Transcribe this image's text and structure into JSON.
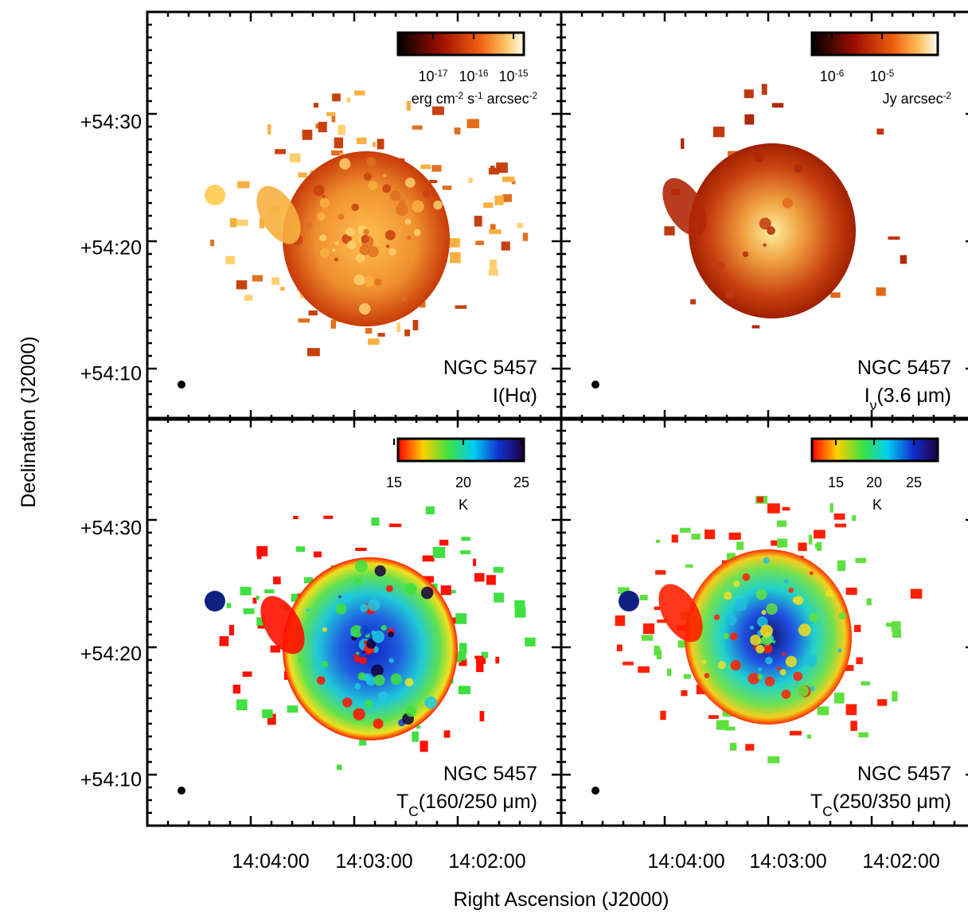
{
  "axes": {
    "x_label": "Right Ascension (J2000)",
    "y_label": "Declination (J2000)",
    "x_ticks": [
      "14:04:00",
      "14:03:00",
      "14:02:00"
    ],
    "y_ticks": [
      "+54:30",
      "+54:20",
      "+54:10"
    ]
  },
  "panels": [
    {
      "galaxy": "NGC 5457",
      "quantity": [
        {
          "text": "I(Hα)"
        }
      ],
      "colorbar": {
        "ticks": [
          {
            "base": "10",
            "exp": "-17"
          },
          {
            "base": "10",
            "exp": "-16"
          },
          {
            "base": "10",
            "exp": "-15"
          }
        ],
        "unit": [
          {
            "text": "erg cm"
          },
          {
            "sup": "-2"
          },
          {
            "text": " s"
          },
          {
            "sup": "-1"
          },
          {
            "text": " arcsec"
          },
          {
            "sup": "-2"
          }
        ]
      }
    },
    {
      "galaxy": "NGC 5457",
      "quantity": [
        {
          "text": "I"
        },
        {
          "sub": "ν"
        },
        {
          "text": "(3.6 μm)"
        }
      ],
      "colorbar": {
        "ticks": [
          {
            "base": "10",
            "exp": "-6"
          },
          {
            "base": "10",
            "exp": "-5"
          }
        ],
        "unit": [
          {
            "text": "Jy arcsec"
          },
          {
            "sup": "-2"
          }
        ]
      }
    },
    {
      "galaxy": "NGC 5457",
      "quantity": [
        {
          "text": "T"
        },
        {
          "sub": "C"
        },
        {
          "text": "(160/250 μm)"
        }
      ],
      "colorbar": {
        "ticks": [
          {
            "base": "15"
          },
          {
            "base": "20"
          },
          {
            "base": "25"
          }
        ],
        "unit": [
          {
            "text": "K"
          }
        ]
      }
    },
    {
      "galaxy": "NGC 5457",
      "quantity": [
        {
          "text": "T"
        },
        {
          "sub": "C"
        },
        {
          "text": "(250/350 μm)"
        }
      ],
      "colorbar": {
        "ticks": [
          {
            "base": "15"
          },
          {
            "base": "20"
          },
          {
            "base": "25"
          }
        ],
        "unit": [
          {
            "text": "K"
          }
        ]
      }
    }
  ]
}
